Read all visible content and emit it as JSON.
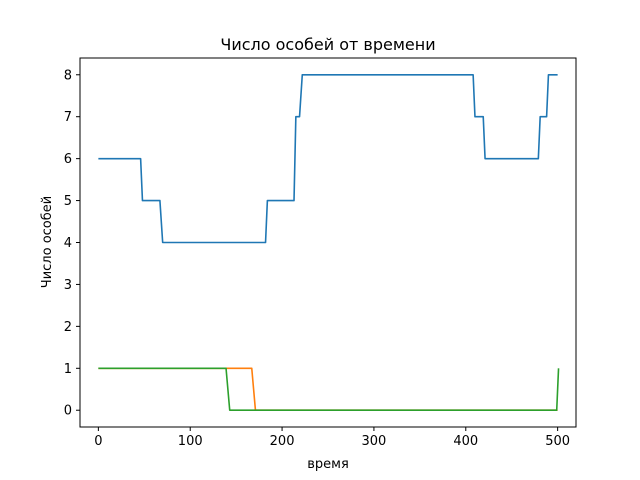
{
  "chart_data": {
    "type": "line",
    "title": "Число особей от времени",
    "xlabel": "время",
    "ylabel": "Число особей",
    "xlim": [
      -20,
      520
    ],
    "ylim": [
      -0.4,
      8.4
    ],
    "xticks": [
      0,
      100,
      200,
      300,
      400,
      500
    ],
    "yticks": [
      0,
      1,
      2,
      3,
      4,
      5,
      6,
      7,
      8
    ],
    "grid": false,
    "series": [
      {
        "color": "#1f77b4",
        "points": [
          [
            0,
            6
          ],
          [
            46,
            6
          ],
          [
            48,
            5
          ],
          [
            67,
            5
          ],
          [
            70,
            4
          ],
          [
            182,
            4
          ],
          [
            184,
            5
          ],
          [
            213,
            5
          ],
          [
            215,
            7
          ],
          [
            219,
            7
          ],
          [
            222,
            8
          ],
          [
            408,
            8
          ],
          [
            410,
            7
          ],
          [
            419,
            7
          ],
          [
            421,
            6
          ],
          [
            479,
            6
          ],
          [
            481,
            7
          ],
          [
            488,
            7
          ],
          [
            490,
            8
          ],
          [
            500,
            8
          ]
        ]
      },
      {
        "color": "#ff7f0e",
        "points": [
          [
            0,
            1
          ],
          [
            167,
            1
          ],
          [
            171,
            0
          ],
          [
            500,
            0
          ]
        ]
      },
      {
        "color": "#2ca02c",
        "points": [
          [
            0,
            1
          ],
          [
            139,
            1
          ],
          [
            143,
            0
          ],
          [
            499,
            0
          ],
          [
            501,
            1
          ]
        ]
      }
    ]
  }
}
